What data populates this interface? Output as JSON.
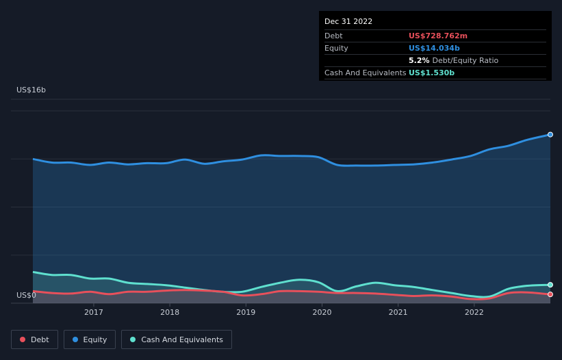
{
  "tooltip": {
    "date": "Dec 31 2022",
    "rows": [
      {
        "label": "Debt",
        "value": "US$728.762m",
        "color": "#e8505b"
      },
      {
        "label": "Equity",
        "value": "US$14.034b",
        "color": "#2f8fe0"
      },
      {
        "label": "",
        "value": "5.2%",
        "suffix": "Debt/Equity Ratio",
        "color": "#ffffff"
      },
      {
        "label": "Cash And Equivalents",
        "value": "US$1.530b",
        "color": "#5fe0cf"
      }
    ]
  },
  "legend": [
    {
      "label": "Debt",
      "color": "#e8505b"
    },
    {
      "label": "Equity",
      "color": "#2f8fe0"
    },
    {
      "label": "Cash And Equivalents",
      "color": "#5fe0cf"
    }
  ],
  "chart_data": {
    "type": "area",
    "title": "",
    "y_top_label": "US$16b",
    "y_zero_label": "US$0",
    "ylim": [
      0,
      16
    ],
    "xlim": [
      2016.2,
      2023.0
    ],
    "x_ticks": [
      "2017",
      "2018",
      "2019",
      "2020",
      "2021",
      "2022"
    ],
    "x_tick_values": [
      2017,
      2018,
      2019,
      2020,
      2021,
      2022
    ],
    "grid": true,
    "legend_position": "bottom-left",
    "series": [
      {
        "name": "Equity",
        "color": "#2f8fe0",
        "x": [
          2016.2,
          2016.45,
          2016.7,
          2016.95,
          2017.2,
          2017.45,
          2017.7,
          2017.95,
          2018.2,
          2018.45,
          2018.7,
          2018.95,
          2019.2,
          2019.45,
          2019.7,
          2019.95,
          2020.2,
          2020.45,
          2020.7,
          2020.95,
          2021.2,
          2021.45,
          2021.7,
          2021.95,
          2022.2,
          2022.45,
          2022.7,
          2023.0
        ],
        "y": [
          12.0,
          11.7,
          11.7,
          11.5,
          11.7,
          11.55,
          11.65,
          11.65,
          11.95,
          11.6,
          11.8,
          11.95,
          12.3,
          12.25,
          12.25,
          12.15,
          11.5,
          11.45,
          11.45,
          11.5,
          11.55,
          11.7,
          11.95,
          12.25,
          12.8,
          13.1,
          13.6,
          14.03
        ]
      },
      {
        "name": "Cash And Equivalents",
        "color": "#5fe0cf",
        "x": [
          2016.2,
          2016.45,
          2016.7,
          2016.95,
          2017.2,
          2017.45,
          2017.7,
          2017.95,
          2018.2,
          2018.45,
          2018.7,
          2018.95,
          2019.2,
          2019.45,
          2019.7,
          2019.95,
          2020.2,
          2020.45,
          2020.7,
          2020.95,
          2021.2,
          2021.45,
          2021.7,
          2021.95,
          2022.2,
          2022.45,
          2022.7,
          2023.0
        ],
        "y": [
          2.6,
          2.35,
          2.35,
          2.05,
          2.05,
          1.7,
          1.6,
          1.5,
          1.3,
          1.1,
          0.95,
          0.95,
          1.35,
          1.7,
          1.95,
          1.75,
          1.0,
          1.4,
          1.7,
          1.5,
          1.35,
          1.1,
          0.85,
          0.6,
          0.55,
          1.2,
          1.45,
          1.53
        ]
      },
      {
        "name": "Debt",
        "color": "#e8505b",
        "x": [
          2016.2,
          2016.45,
          2016.7,
          2016.95,
          2017.2,
          2017.45,
          2017.7,
          2017.95,
          2018.2,
          2018.45,
          2018.7,
          2018.95,
          2019.2,
          2019.45,
          2019.7,
          2019.95,
          2020.2,
          2020.45,
          2020.7,
          2020.95,
          2021.2,
          2021.45,
          2021.7,
          2021.95,
          2022.2,
          2022.45,
          2022.7,
          2023.0
        ],
        "y": [
          1.0,
          0.85,
          0.8,
          0.95,
          0.75,
          0.95,
          0.95,
          1.05,
          1.1,
          1.05,
          0.95,
          0.65,
          0.75,
          1.0,
          1.0,
          0.95,
          0.85,
          0.85,
          0.8,
          0.7,
          0.6,
          0.65,
          0.55,
          0.35,
          0.4,
          0.85,
          0.9,
          0.73
        ]
      }
    ]
  }
}
